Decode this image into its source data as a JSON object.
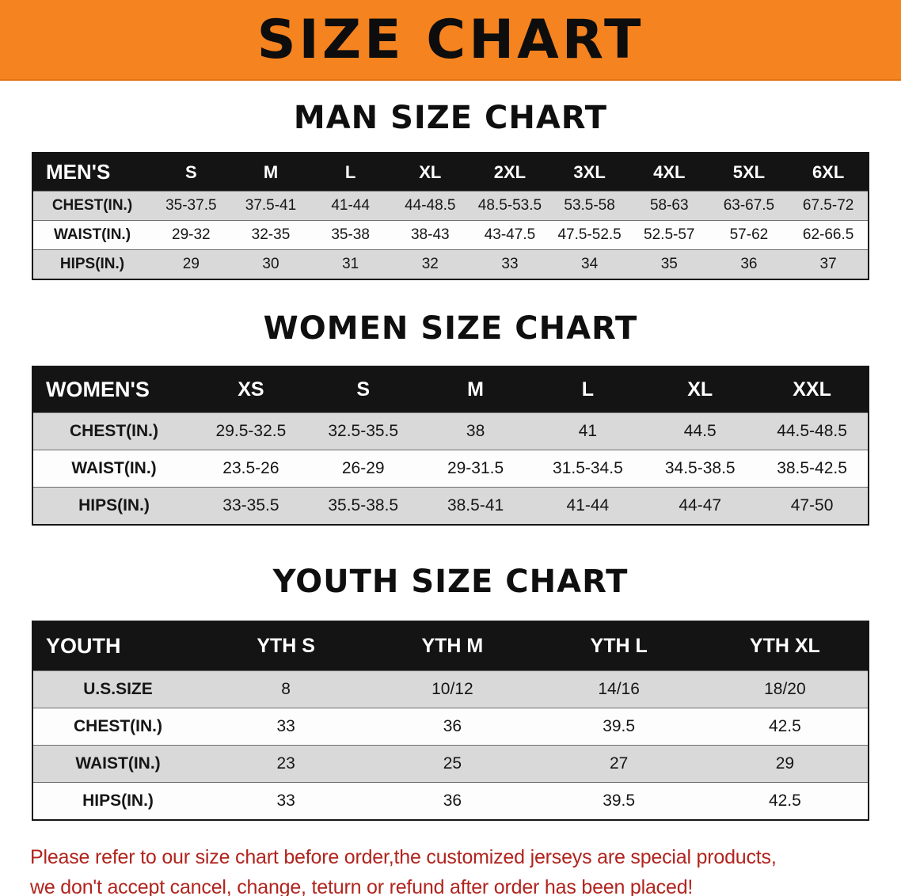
{
  "banner": {
    "title": "SIZE CHART"
  },
  "colors": {
    "banner_bg": "#f5831f",
    "table_header_bg": "#141414",
    "row_stripe": "#d9d9d9",
    "disclaimer_text": "#b1241e"
  },
  "sections": [
    {
      "heading": "MAN SIZE CHART",
      "table": {
        "header": [
          "MEN'S",
          "S",
          "M",
          "L",
          "XL",
          "2XL",
          "3XL",
          "4XL",
          "5XL",
          "6XL"
        ],
        "rows": [
          [
            "CHEST(IN.)",
            "35-37.5",
            "37.5-41",
            "41-44",
            "44-48.5",
            "48.5-53.5",
            "53.5-58",
            "58-63",
            "63-67.5",
            "67.5-72"
          ],
          [
            "WAIST(IN.)",
            "29-32",
            "32-35",
            "35-38",
            "38-43",
            "43-47.5",
            "47.5-52.5",
            "52.5-57",
            "57-62",
            "62-66.5"
          ],
          [
            "HIPS(IN.)",
            "29",
            "30",
            "31",
            "32",
            "33",
            "34",
            "35",
            "36",
            "37"
          ]
        ]
      }
    },
    {
      "heading": "WOMEN SIZE CHART",
      "table": {
        "header": [
          "WOMEN'S",
          "XS",
          "S",
          "M",
          "L",
          "XL",
          "XXL"
        ],
        "rows": [
          [
            "CHEST(IN.)",
            "29.5-32.5",
            "32.5-35.5",
            "38",
            "41",
            "44.5",
            "44.5-48.5"
          ],
          [
            "WAIST(IN.)",
            "23.5-26",
            "26-29",
            "29-31.5",
            "31.5-34.5",
            "34.5-38.5",
            "38.5-42.5"
          ],
          [
            "HIPS(IN.)",
            "33-35.5",
            "35.5-38.5",
            "38.5-41",
            "41-44",
            "44-47",
            "47-50"
          ]
        ]
      }
    },
    {
      "heading": "YOUTH SIZE CHART",
      "table": {
        "header": [
          "YOUTH",
          "YTH S",
          "YTH M",
          "YTH L",
          "YTH XL"
        ],
        "rows": [
          [
            "U.S.SIZE",
            "8",
            "10/12",
            "14/16",
            "18/20"
          ],
          [
            "CHEST(IN.)",
            "33",
            "36",
            "39.5",
            "42.5"
          ],
          [
            "WAIST(IN.)",
            "23",
            "25",
            "27",
            "29"
          ],
          [
            "HIPS(IN.)",
            "33",
            "36",
            "39.5",
            "42.5"
          ]
        ]
      }
    }
  ],
  "footer": {
    "line1": "Please refer to our size chart before order,the customized jerseys are special products,",
    "line2": "we don't accept cancel, change, teturn or refund after order has been placed!"
  }
}
